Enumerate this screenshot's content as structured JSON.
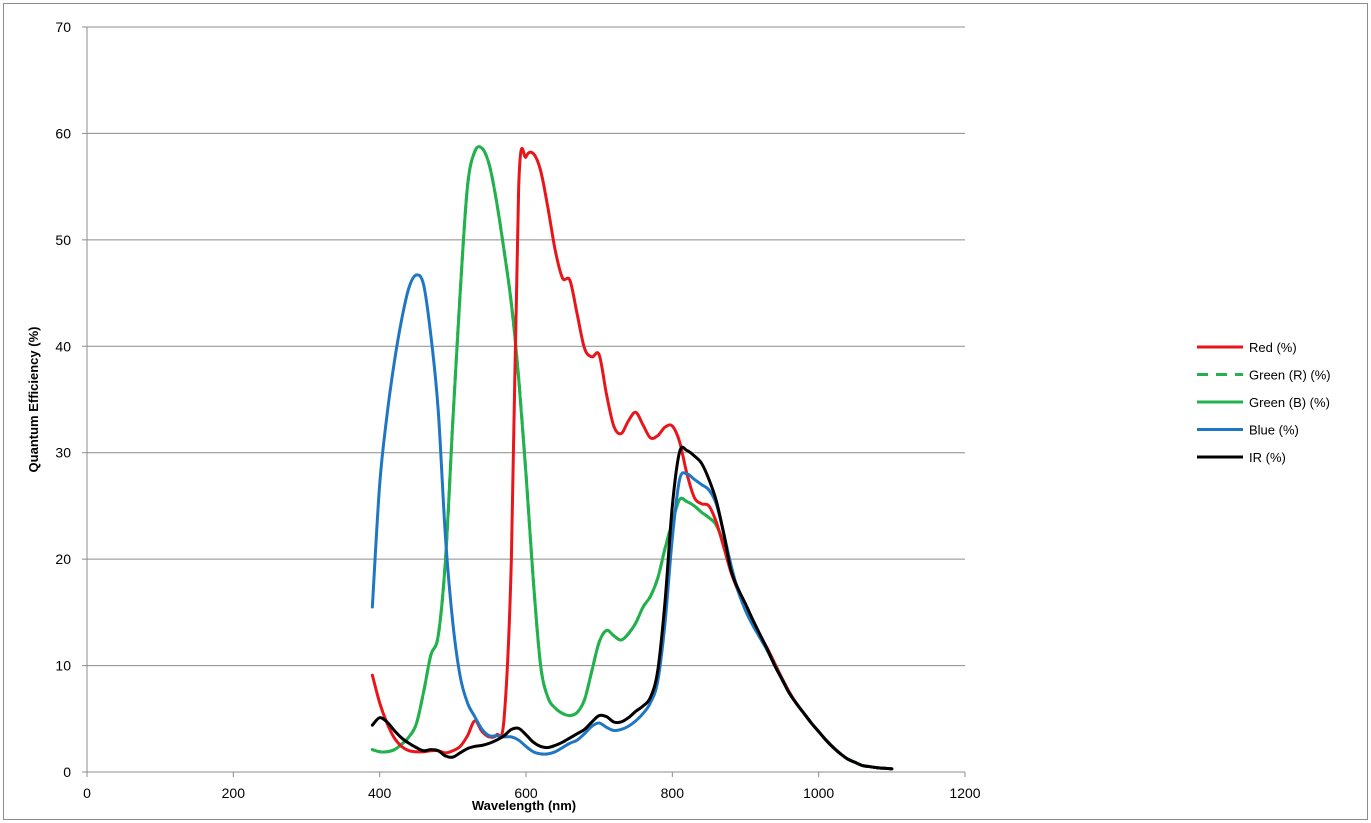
{
  "chart_data": {
    "type": "line",
    "title": "",
    "xlabel": "Wavelength (nm)",
    "ylabel": "Quantum Efficiency (%)",
    "xlim": [
      0,
      1200
    ],
    "ylim": [
      0,
      70
    ],
    "xticks": [
      0,
      200,
      400,
      600,
      800,
      1000,
      1200
    ],
    "yticks": [
      0,
      10,
      20,
      30,
      40,
      50,
      60,
      70
    ],
    "grid": "horizontal",
    "legend": "right",
    "series": [
      {
        "name": "Red (%)",
        "color": "#e8161b",
        "dash": "solid",
        "x": [
          390,
          400,
          410,
          420,
          430,
          440,
          450,
          460,
          470,
          480,
          490,
          500,
          510,
          520,
          530,
          540,
          550,
          560,
          570,
          580,
          590,
          600,
          610,
          620,
          630,
          640,
          650,
          660,
          670,
          680,
          690,
          700,
          710,
          720,
          730,
          740,
          750,
          760,
          770,
          780,
          790,
          800,
          810,
          820,
          830,
          840,
          850,
          860,
          870,
          880,
          890,
          900,
          910,
          920,
          930,
          940,
          950,
          960,
          970,
          980,
          990,
          1000,
          1010,
          1020,
          1030,
          1040,
          1050,
          1060,
          1070,
          1080,
          1090,
          1100
        ],
        "y": [
          9.1,
          6.5,
          4.6,
          3.2,
          2.4,
          2.0,
          1.9,
          1.9,
          2.0,
          2.0,
          1.8,
          2.0,
          2.4,
          3.4,
          4.8,
          3.8,
          3.3,
          3.5,
          5.0,
          20.0,
          55.0,
          57.8,
          58.1,
          56.5,
          53.0,
          49.0,
          46.4,
          46.2,
          43.0,
          39.8,
          39.0,
          39.2,
          35.5,
          32.5,
          31.8,
          33.0,
          33.8,
          32.6,
          31.4,
          31.6,
          32.4,
          32.5,
          31.0,
          28.0,
          25.8,
          25.2,
          25.0,
          23.5,
          21.2,
          18.8,
          17.0,
          15.5,
          14.0,
          12.8,
          11.6,
          10.2,
          8.8,
          7.5,
          6.4,
          5.5,
          4.6,
          3.8,
          3.0,
          2.3,
          1.7,
          1.2,
          0.9,
          0.6,
          0.5,
          0.4,
          0.35,
          0.3
        ]
      },
      {
        "name": "Green (R) (%)",
        "color": "#22b14c",
        "dash": "dashed",
        "x": [
          390,
          400,
          410,
          420,
          430,
          440,
          450,
          460,
          470,
          480,
          490,
          500,
          510,
          520,
          530,
          540,
          550,
          560,
          570,
          580,
          590,
          600,
          610,
          620,
          630,
          640,
          650,
          660,
          670,
          680,
          690,
          700,
          710,
          720,
          730,
          740,
          750,
          760,
          770,
          780,
          790,
          800,
          810,
          820,
          830,
          840,
          850,
          860,
          870,
          880,
          890,
          900,
          910,
          920,
          930,
          940,
          950,
          960,
          970,
          980,
          990,
          1000,
          1010,
          1020,
          1030,
          1040,
          1050,
          1060,
          1070,
          1080,
          1090,
          1100
        ],
        "y": [
          2.1,
          1.9,
          1.9,
          2.1,
          2.6,
          3.3,
          4.5,
          7.5,
          11.0,
          12.8,
          20.0,
          33.0,
          45.0,
          55.0,
          58.3,
          58.6,
          57.0,
          53.5,
          49.0,
          44.0,
          37.0,
          28.0,
          18.0,
          10.0,
          7.0,
          6.0,
          5.5,
          5.3,
          5.6,
          6.8,
          9.5,
          12.2,
          13.3,
          12.8,
          12.4,
          13.0,
          14.0,
          15.5,
          16.5,
          18.2,
          21.0,
          23.5,
          25.6,
          25.4,
          25.0,
          24.4,
          23.9,
          23.2,
          21.5,
          19.0,
          17.0,
          15.2,
          13.8,
          12.6,
          11.4,
          10.0,
          8.7,
          7.4,
          6.4,
          5.5,
          4.6,
          3.8,
          3.0,
          2.3,
          1.7,
          1.2,
          0.9,
          0.6,
          0.5,
          0.4,
          0.35,
          0.3
        ]
      },
      {
        "name": "Green (B) (%)",
        "color": "#22b14c",
        "dash": "solid",
        "x": [
          390,
          400,
          410,
          420,
          430,
          440,
          450,
          460,
          470,
          480,
          490,
          500,
          510,
          520,
          530,
          540,
          550,
          560,
          570,
          580,
          590,
          600,
          610,
          620,
          630,
          640,
          650,
          660,
          670,
          680,
          690,
          700,
          710,
          720,
          730,
          740,
          750,
          760,
          770,
          780,
          790,
          800,
          810,
          820,
          830,
          840,
          850,
          860,
          870,
          880,
          890,
          900,
          910,
          920,
          930,
          940,
          950,
          960,
          970,
          980,
          990,
          1000,
          1010,
          1020,
          1030,
          1040,
          1050,
          1060,
          1070,
          1080,
          1090,
          1100
        ],
        "y": [
          2.1,
          1.9,
          1.9,
          2.1,
          2.6,
          3.3,
          4.5,
          7.5,
          11.0,
          12.8,
          20.0,
          33.0,
          45.0,
          55.0,
          58.3,
          58.6,
          57.0,
          53.5,
          49.0,
          44.0,
          37.0,
          28.0,
          18.0,
          10.0,
          7.0,
          6.0,
          5.5,
          5.3,
          5.6,
          6.8,
          9.5,
          12.2,
          13.3,
          12.8,
          12.4,
          13.0,
          14.0,
          15.5,
          16.5,
          18.2,
          21.0,
          23.5,
          25.6,
          25.4,
          25.0,
          24.4,
          23.9,
          23.2,
          21.5,
          19.0,
          17.0,
          15.2,
          13.8,
          12.6,
          11.4,
          10.0,
          8.7,
          7.4,
          6.4,
          5.5,
          4.6,
          3.8,
          3.0,
          2.3,
          1.7,
          1.2,
          0.9,
          0.6,
          0.5,
          0.4,
          0.35,
          0.3
        ]
      },
      {
        "name": "Blue (%)",
        "color": "#1f77c4",
        "dash": "solid",
        "x": [
          390,
          400,
          410,
          420,
          430,
          440,
          450,
          460,
          470,
          480,
          490,
          500,
          510,
          520,
          530,
          540,
          550,
          560,
          570,
          580,
          590,
          600,
          610,
          620,
          630,
          640,
          650,
          660,
          670,
          680,
          690,
          700,
          710,
          720,
          730,
          740,
          750,
          760,
          770,
          780,
          790,
          800,
          810,
          820,
          830,
          840,
          850,
          860,
          870,
          880,
          890,
          900,
          910,
          920,
          930,
          940,
          950,
          960,
          970,
          980,
          990,
          1000,
          1010,
          1020,
          1030,
          1040,
          1050,
          1060,
          1070,
          1080,
          1090,
          1100
        ],
        "y": [
          15.5,
          27.0,
          33.5,
          38.5,
          42.5,
          45.5,
          46.7,
          45.8,
          41.0,
          34.0,
          22.0,
          14.0,
          9.0,
          6.5,
          5.2,
          4.0,
          3.4,
          3.4,
          3.3,
          3.3,
          3.0,
          2.4,
          1.9,
          1.7,
          1.7,
          1.9,
          2.3,
          2.7,
          3.0,
          3.6,
          4.3,
          4.6,
          4.2,
          3.9,
          4.0,
          4.3,
          4.8,
          5.5,
          6.5,
          8.5,
          14.0,
          22.0,
          27.5,
          28.0,
          27.5,
          27.0,
          26.5,
          25.2,
          22.5,
          19.5,
          17.0,
          15.2,
          13.8,
          12.6,
          11.4,
          10.0,
          8.7,
          7.4,
          6.4,
          5.5,
          4.6,
          3.8,
          3.0,
          2.3,
          1.7,
          1.2,
          0.9,
          0.6,
          0.5,
          0.4,
          0.35,
          0.3
        ]
      },
      {
        "name": "IR (%)",
        "color": "#000000",
        "dash": "solid",
        "x": [
          390,
          400,
          410,
          420,
          430,
          440,
          450,
          460,
          470,
          480,
          490,
          500,
          510,
          520,
          530,
          540,
          550,
          560,
          570,
          580,
          590,
          600,
          610,
          620,
          630,
          640,
          650,
          660,
          670,
          680,
          690,
          700,
          710,
          720,
          730,
          740,
          750,
          760,
          770,
          780,
          790,
          800,
          810,
          820,
          830,
          840,
          850,
          860,
          870,
          880,
          890,
          900,
          910,
          920,
          930,
          940,
          950,
          960,
          970,
          980,
          990,
          1000,
          1010,
          1020,
          1030,
          1040,
          1050,
          1060,
          1070,
          1080,
          1090,
          1100
        ],
        "y": [
          4.4,
          5.1,
          4.7,
          3.9,
          3.2,
          2.7,
          2.3,
          2.0,
          2.1,
          2.0,
          1.5,
          1.4,
          1.8,
          2.2,
          2.4,
          2.5,
          2.7,
          3.0,
          3.4,
          4.0,
          4.1,
          3.5,
          2.8,
          2.4,
          2.3,
          2.5,
          2.8,
          3.2,
          3.6,
          4.0,
          4.7,
          5.3,
          5.2,
          4.7,
          4.7,
          5.1,
          5.7,
          6.2,
          7.0,
          9.5,
          16.0,
          25.0,
          30.1,
          30.2,
          29.7,
          29.0,
          27.5,
          25.5,
          22.5,
          19.0,
          17.2,
          15.8,
          14.3,
          12.9,
          11.5,
          10.0,
          8.7,
          7.4,
          6.4,
          5.5,
          4.6,
          3.8,
          3.0,
          2.3,
          1.7,
          1.2,
          0.9,
          0.6,
          0.5,
          0.4,
          0.35,
          0.3
        ]
      }
    ]
  }
}
